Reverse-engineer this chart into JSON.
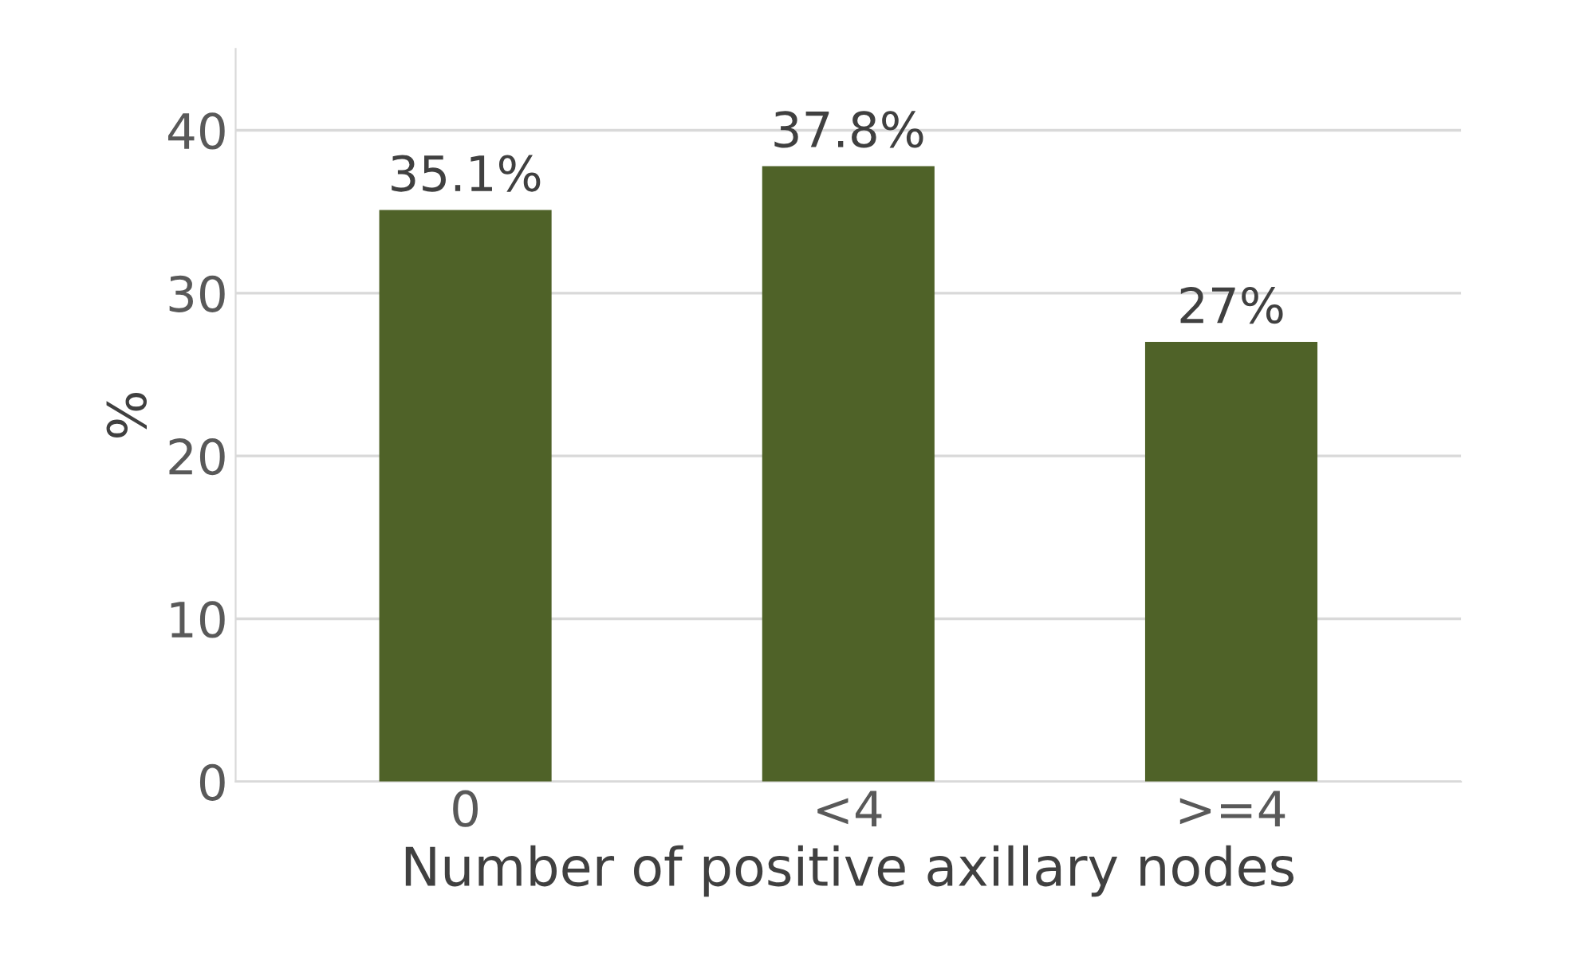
{
  "chart_data": {
    "type": "bar",
    "xlabel": "Number of positive axillary nodes",
    "ylabel": "%",
    "categories": [
      "0",
      "<4",
      ">=4"
    ],
    "values": [
      35.1,
      37.8,
      27
    ],
    "value_labels": [
      "35.1%",
      "37.8%",
      "27%"
    ],
    "color": "#4f6228",
    "ylim": [
      0,
      45
    ],
    "yticks": [
      0,
      10,
      20,
      30,
      40
    ],
    "grid": "y",
    "legend": false
  }
}
